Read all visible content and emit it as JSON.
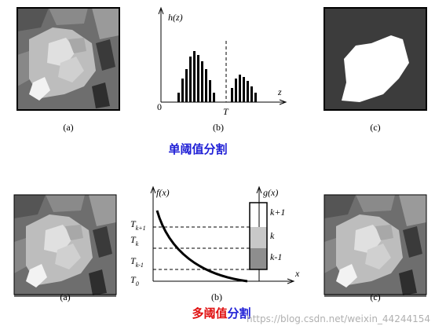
{
  "top": {
    "panel_labels": [
      "(a)",
      "(b)",
      "(c)"
    ],
    "y_axis_label": "h(z)",
    "origin_label": "0",
    "threshold_label": "T",
    "x_axis_label": "z",
    "title": "单阈值分割"
  },
  "bottom": {
    "panel_labels": [
      "(a)",
      "(b)",
      "(c)"
    ],
    "f_axis_label": "f(x)",
    "g_axis_label": "g(x)",
    "x_axis_label": "x",
    "thresholds": [
      {
        "base": "T",
        "sub": "k+1"
      },
      {
        "base": "T",
        "sub": "k"
      },
      {
        "base": "T",
        "sub": "k-1"
      },
      {
        "base": "T",
        "sub": "0"
      }
    ],
    "levels": [
      "k+1",
      "k",
      "k-1"
    ],
    "title_red": "多阈值",
    "title_blue": "分割"
  },
  "watermark": "https://blog.csdn.net/weixin_44244154"
}
